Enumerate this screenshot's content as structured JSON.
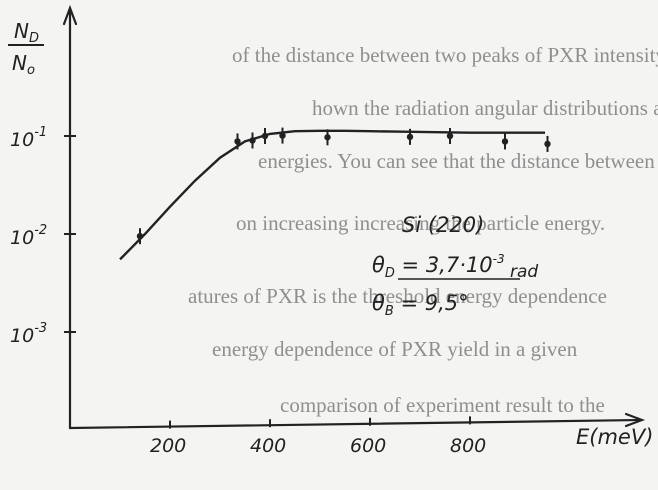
{
  "chart_data": {
    "type": "scatter",
    "ylabel": {
      "numerator": "N_D",
      "denominator": "N_0"
    },
    "xlabel": "E(meV)",
    "x_ticks": [
      200,
      400,
      600,
      800
    ],
    "x_tick_labels": [
      "200",
      "400",
      "600",
      "800"
    ],
    "y_scale": "log",
    "y_tick_labels": [
      "10^-1",
      "10^-2",
      "10^-3"
    ],
    "xlim": [
      0,
      900
    ],
    "ylim": [
      0.0001,
      0.2
    ],
    "grid": false,
    "points": [
      {
        "x": 140,
        "y": 0.0095
      },
      {
        "x": 335,
        "y": 0.088
      },
      {
        "x": 365,
        "y": 0.09
      },
      {
        "x": 390,
        "y": 0.1
      },
      {
        "x": 425,
        "y": 0.101
      },
      {
        "x": 515,
        "y": 0.097
      },
      {
        "x": 680,
        "y": 0.098
      },
      {
        "x": 760,
        "y": 0.1
      },
      {
        "x": 870,
        "y": 0.088
      },
      {
        "x": 955,
        "y": 0.083
      }
    ],
    "curve": {
      "x": [
        100,
        150,
        200,
        250,
        300,
        350,
        400,
        450,
        500,
        550,
        600,
        650,
        700,
        750,
        800,
        850,
        900,
        950
      ],
      "y": [
        0.0055,
        0.01,
        0.019,
        0.035,
        0.06,
        0.088,
        0.105,
        0.112,
        0.113,
        0.113,
        0.112,
        0.111,
        0.11,
        0.109,
        0.108,
        0.108,
        0.108,
        0.108
      ]
    },
    "annotations": [
      "Si (220)",
      "θ_D = 3,7·10^-3 rad",
      "θ_B = 9,5°"
    ]
  },
  "background_text": [
    "of the distance between two peaks of PXR intensity",
    "hown the radiation angular distributions along",
    "energies. You can see that the distance between",
    "on increasing increasing the particle energy.",
    "atures of PXR is the threshold energy dependence",
    "energy dependence of PXR yield in a given",
    "comparison of experiment result to the"
  ]
}
